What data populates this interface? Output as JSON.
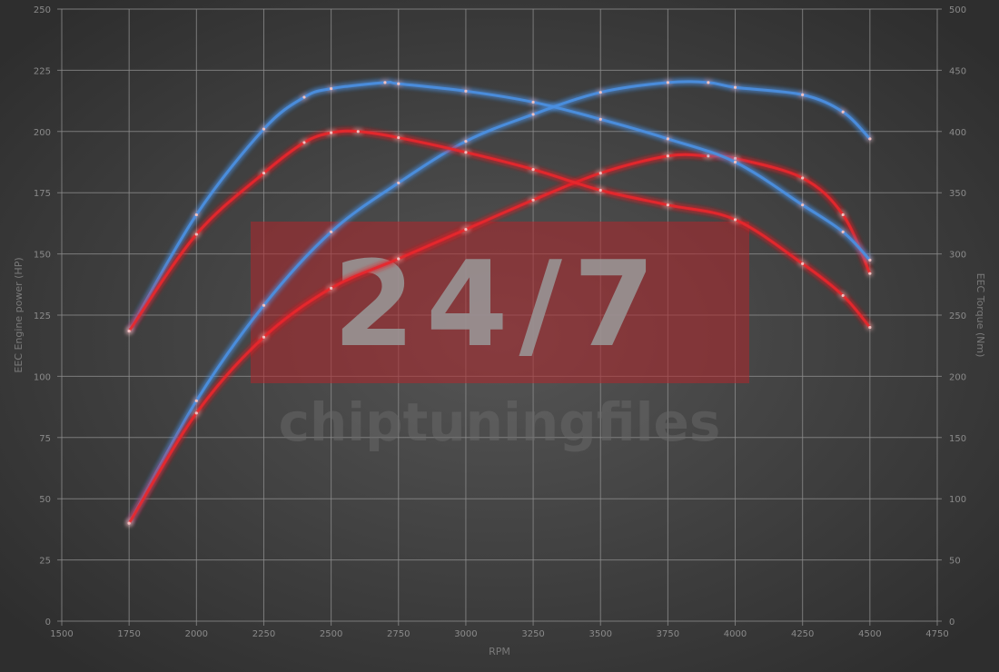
{
  "watermark": {
    "logo_text": "24/7",
    "brand_text": "chiptuningfiles"
  },
  "chart_data": {
    "type": "line",
    "title": "",
    "xlabel": "RPM",
    "ylabel_left": "EEC Engine power (HP)",
    "ylabel_right": "EEC Torque (Nm)",
    "xlim": [
      1500,
      4750
    ],
    "ylim_left": [
      0,
      250
    ],
    "ylim_right": [
      0,
      500
    ],
    "xticks": [
      1500,
      1750,
      2000,
      2250,
      2500,
      2750,
      3000,
      3250,
      3500,
      3750,
      4000,
      4250,
      4500,
      4750
    ],
    "yticks_left": [
      0,
      25,
      50,
      75,
      100,
      125,
      150,
      175,
      200,
      225,
      250
    ],
    "yticks_right": [
      0,
      50,
      100,
      150,
      200,
      250,
      300,
      350,
      400,
      450,
      500
    ],
    "grid": true,
    "legend": "none",
    "series": [
      {
        "axis": "left",
        "color": "#4a90e2",
        "x": [
          1750,
          2000,
          2250,
          2500,
          2750,
          3000,
          3250,
          3500,
          3750,
          3900,
          4000,
          4250,
          4400,
          4500
        ],
        "values": [
          40,
          90,
          129,
          159,
          179,
          196,
          207,
          216,
          220,
          220,
          218,
          215,
          208,
          197
        ]
      },
      {
        "axis": "left",
        "color": "#e8262a",
        "x": [
          1750,
          2000,
          2250,
          2500,
          2750,
          3000,
          3250,
          3500,
          3750,
          3900,
          4000,
          4250,
          4400,
          4500
        ],
        "values": [
          40,
          85,
          116,
          136,
          148,
          160,
          172,
          183,
          190,
          190,
          189,
          181,
          166,
          142
        ]
      },
      {
        "axis": "right",
        "color": "#4a90e2",
        "x": [
          1750,
          2000,
          2250,
          2400,
          2500,
          2700,
          2750,
          3000,
          3250,
          3500,
          3750,
          4000,
          4250,
          4400,
          4500
        ],
        "values": [
          237,
          332,
          402,
          428,
          435,
          440,
          439,
          433,
          424,
          410,
          394,
          375,
          340,
          318,
          295
        ]
      },
      {
        "axis": "right",
        "color": "#e8262a",
        "x": [
          1750,
          2000,
          2250,
          2400,
          2500,
          2600,
          2750,
          3000,
          3250,
          3500,
          3750,
          4000,
          4250,
          4400,
          4500
        ],
        "values": [
          237,
          316,
          366,
          391,
          399,
          400,
          395,
          383,
          369,
          352,
          340,
          328,
          292,
          266,
          240
        ]
      }
    ]
  }
}
